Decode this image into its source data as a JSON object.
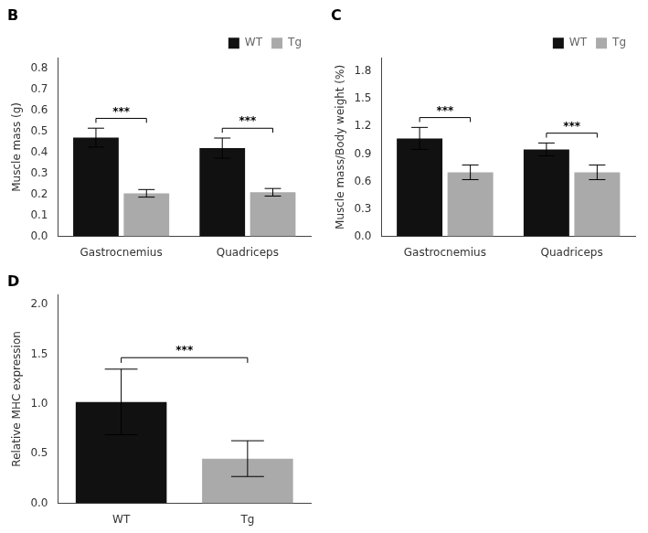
{
  "chart_data": [
    {
      "type": "bar",
      "title": "B",
      "categories": [
        "Gastrocnemius",
        "Quadriceps"
      ],
      "series": [
        {
          "name": "WT",
          "color": "#111111",
          "values": [
            0.47,
            0.42
          ],
          "errors": [
            0.045,
            0.048
          ]
        },
        {
          "name": "Tg",
          "color": "#aaaaaa",
          "values": [
            0.205,
            0.21
          ],
          "errors": [
            0.018,
            0.018
          ]
        }
      ],
      "ylabel": "Muscle mass (g)",
      "ylim": [
        0,
        0.85
      ],
      "yticks": [
        {
          "value": 0.0,
          "label": "0.0"
        },
        0.1,
        0.2,
        0.3,
        0.4,
        0.5,
        0.6,
        0.7,
        0.8
      ],
      "annotations": [
        "***",
        "***"
      ],
      "legend": "upper right",
      "grid": false
    },
    {
      "type": "bar",
      "title": "C",
      "categories": [
        "Gastrocnemius",
        "Quadriceps"
      ],
      "series": [
        {
          "name": "WT",
          "color": "#111111",
          "values": [
            1.07,
            0.95
          ],
          "errors": [
            0.12,
            0.07
          ]
        },
        {
          "name": "Tg",
          "color": "#aaaaaa",
          "values": [
            0.7,
            0.7
          ],
          "errors": [
            0.08,
            0.08
          ]
        }
      ],
      "ylabel": "Muscle mass/Body weight (%)",
      "ylim": [
        0,
        1.95
      ],
      "yticks": [
        {
          "value": 0.0,
          "label": "0.0"
        },
        0.3,
        0.6,
        0.9,
        1.2,
        1.5,
        1.8
      ],
      "annotations": [
        "***",
        "***"
      ],
      "legend": "upper right",
      "grid": false
    },
    {
      "type": "bar",
      "title": "D",
      "categories": [
        "WT",
        "Tg"
      ],
      "values": [
        1.02,
        0.45
      ],
      "errors": [
        0.33,
        0.18
      ],
      "colors": [
        "#111111",
        "#aaaaaa"
      ],
      "ylabel": "Relative MHC expression",
      "ylim": [
        0,
        2.1
      ],
      "yticks": [
        {
          "value": 0.0,
          "label": "0.0"
        },
        0.5,
        {
          "value": 1.0,
          "label": "1.0"
        },
        1.5,
        {
          "value": 2.0,
          "label": "2.0"
        }
      ],
      "annotations": [
        "***"
      ],
      "grid": false
    }
  ]
}
